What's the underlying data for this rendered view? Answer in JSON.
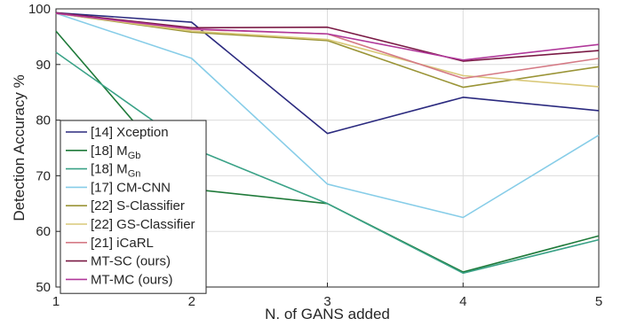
{
  "chart_data": {
    "type": "line",
    "title": "",
    "xlabel": "N. of GANS added",
    "ylabel": "Detection Accuracy %",
    "x": [
      1,
      2,
      3,
      4,
      5
    ],
    "xlim": [
      1,
      5
    ],
    "ylim": [
      50,
      100
    ],
    "xticks": [
      "1",
      "2",
      "3",
      "4",
      "5"
    ],
    "yticks": [
      "50",
      "60",
      "70",
      "80",
      "90",
      "100"
    ],
    "grid": true,
    "legend_position": "bottom-left",
    "series": [
      {
        "name": "[14] Xception",
        "label_main": "[14] Xception",
        "label_sub": "",
        "color": "#2b2a7f",
        "values": [
          99.3,
          97.6,
          77.6,
          84.1,
          81.7
        ]
      },
      {
        "name": "[18] MGb",
        "label_main": "[18] M",
        "label_sub": "Gb",
        "color": "#1f7a3a",
        "values": [
          96.0,
          67.6,
          65.0,
          52.7,
          59.2
        ]
      },
      {
        "name": "[18] MGn",
        "label_main": "[18] M",
        "label_sub": "Gn",
        "color": "#3aa287",
        "values": [
          92.2,
          75.0,
          65.0,
          52.5,
          58.5
        ]
      },
      {
        "name": "[17] CM-CNN",
        "label_main": "[17] CM-CNN",
        "label_sub": "",
        "color": "#87cde8",
        "values": [
          99.2,
          91.1,
          68.5,
          62.5,
          77.3
        ]
      },
      {
        "name": "[22] S-Classifier",
        "label_main": "[22] S-Classifier",
        "label_sub": "",
        "color": "#9a9436",
        "values": [
          99.2,
          95.8,
          94.3,
          85.9,
          89.6
        ]
      },
      {
        "name": "[22] GS-Classifier",
        "label_main": "[22] GS-Classifier",
        "label_sub": "",
        "color": "#d9c878",
        "values": [
          99.2,
          96.0,
          94.5,
          88.0,
          86.0
        ]
      },
      {
        "name": "[21] iCaRL",
        "label_main": "[21] iCaRL",
        "label_sub": "",
        "color": "#d57b86",
        "values": [
          99.2,
          96.3,
          95.5,
          87.5,
          91.1
        ]
      },
      {
        "name": "MT-SC (ours)",
        "label_main": "MT-SC (ours)",
        "label_sub": "",
        "color": "#7a1a45",
        "values": [
          99.3,
          96.6,
          96.7,
          90.6,
          92.5
        ]
      },
      {
        "name": "MT-MC (ours)",
        "label_main": "MT-MC (ours)",
        "label_sub": "",
        "color": "#b0389a",
        "values": [
          99.2,
          96.4,
          95.5,
          90.8,
          93.6
        ]
      }
    ]
  }
}
